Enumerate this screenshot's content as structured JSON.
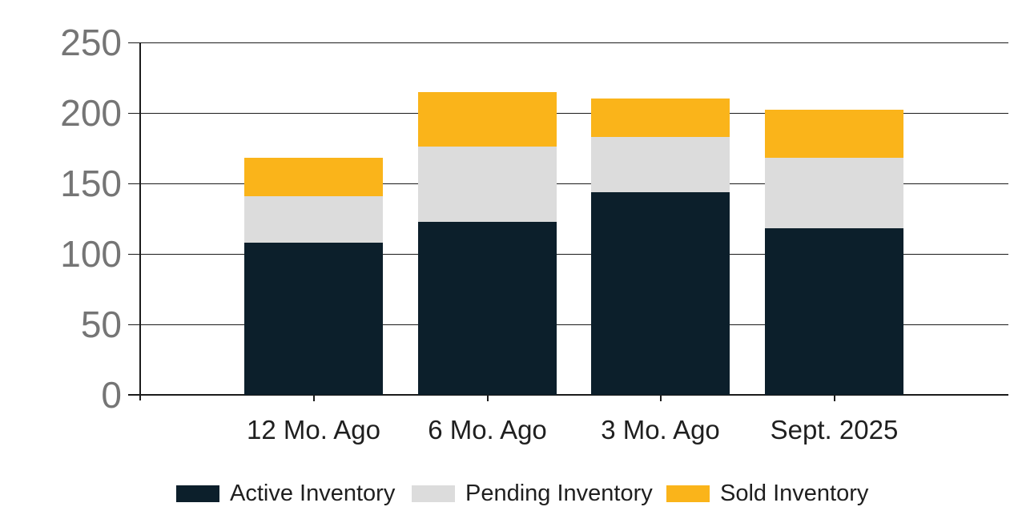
{
  "chart_data": {
    "type": "bar",
    "stacked": true,
    "title": "",
    "categories": [
      "12 Mo. Ago",
      "6 Mo. Ago",
      "3 Mo. Ago",
      "Sept. 2025"
    ],
    "series": [
      {
        "name": "Active Inventory",
        "color": "#0C1F2B",
        "values": [
          108,
          123,
          144,
          118
        ]
      },
      {
        "name": "Pending Inventory",
        "color": "#DCDCDC",
        "values": [
          33,
          53,
          39,
          50
        ]
      },
      {
        "name": "Sold Inventory",
        "color": "#FAB41A",
        "values": [
          27,
          39,
          27,
          34
        ]
      }
    ],
    "totals": [
      168,
      215,
      210,
      202
    ],
    "ylim": [
      0,
      250
    ],
    "yticks": [
      0,
      50,
      100,
      150,
      200,
      250
    ],
    "grid": true,
    "legend_position": "bottom"
  },
  "colors": {
    "background": "#FFFFFF",
    "grid_line": "#1B1B1B",
    "axis_line": "#1B1B1B",
    "y_tick_label": "#757575",
    "x_tick_label": "#1F1F1F",
    "legend_text": "#1F1F1F"
  }
}
